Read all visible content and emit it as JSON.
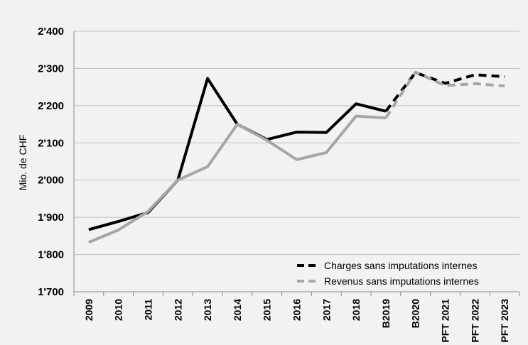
{
  "chart_data": {
    "type": "line",
    "title": "",
    "xlabel": "",
    "ylabel": "Mio. de CHF",
    "categories": [
      "2009",
      "2010",
      "2011",
      "2012",
      "2013",
      "2014",
      "2015",
      "2016",
      "2017",
      "2018",
      "B2019",
      "B2020",
      "PFT 2021",
      "PFT 2022",
      "PFT 2023"
    ],
    "ylim": [
      1700,
      2400
    ],
    "y_ticks": [
      {
        "value": 1700,
        "label": "1'700"
      },
      {
        "value": 1800,
        "label": "1'800"
      },
      {
        "value": 1900,
        "label": "1'900"
      },
      {
        "value": 2000,
        "label": "2'000"
      },
      {
        "value": 2100,
        "label": "2'100"
      },
      {
        "value": 2200,
        "label": "2'200"
      },
      {
        "value": 2300,
        "label": "2'300"
      },
      {
        "value": 2400,
        "label": "2'400"
      }
    ],
    "grid": "horizontal",
    "legend_position": "bottom-right",
    "solid_until_index": 10,
    "series": [
      {
        "name": "Charges sans imputations internes",
        "color": "#000000",
        "values": [
          1867,
          1889,
          1913,
          2000,
          2273,
          2150,
          2109,
          2129,
          2128,
          2205,
          2185,
          2289,
          2260,
          2283,
          2278
        ]
      },
      {
        "name": "Revenus sans imputations internes",
        "color": "#a6a6a6",
        "values": [
          1833,
          1866,
          1916,
          2000,
          2036,
          2150,
          2107,
          2055,
          2074,
          2172,
          2167,
          2290,
          2254,
          2259,
          2253
        ]
      }
    ]
  }
}
